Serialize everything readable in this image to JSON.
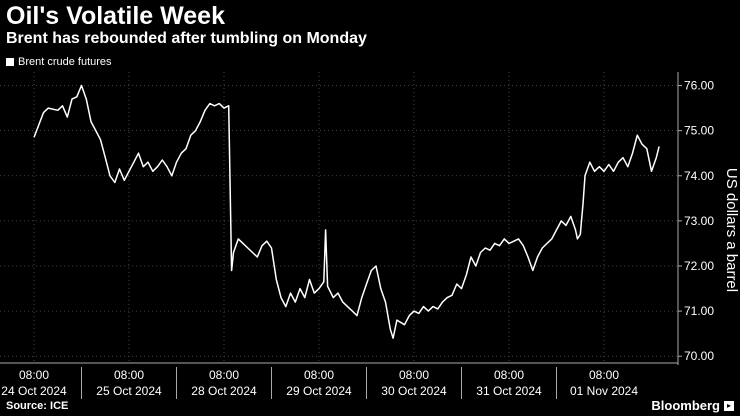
{
  "chart_data": {
    "type": "line",
    "title": "Oil's Volatile Week",
    "subtitle": "Brent has rebounded after tumbling on Monday",
    "ylabel": "US dollars a barrel",
    "series": [
      {
        "name": "Brent crude futures",
        "color": "#ffffff"
      }
    ],
    "ylim": [
      69.85,
      76.3
    ],
    "yticks": [
      70.0,
      71.0,
      72.0,
      73.0,
      74.0,
      75.0,
      76.0
    ],
    "ytick_labels": [
      "70.00",
      "71.00",
      "72.00",
      "73.00",
      "74.00",
      "75.00",
      "76.00"
    ],
    "grid": true,
    "legend": "top-left",
    "days": [
      "24 Oct 2024",
      "25 Oct 2024",
      "28 Oct 2024",
      "29 Oct 2024",
      "30 Oct 2024",
      "31 Oct 2024",
      "01 Nov 2024"
    ],
    "time_label": "08:00",
    "points": [
      [
        0,
        74.85
      ],
      [
        0.1,
        75.4
      ],
      [
        0.15,
        75.5
      ],
      [
        0.25,
        75.45
      ],
      [
        0.3,
        75.55
      ],
      [
        0.35,
        75.3
      ],
      [
        0.4,
        75.7
      ],
      [
        0.45,
        75.75
      ],
      [
        0.5,
        76.0
      ],
      [
        0.55,
        75.7
      ],
      [
        0.6,
        75.2
      ],
      [
        0.65,
        75.0
      ],
      [
        0.7,
        74.8
      ],
      [
        0.75,
        74.4
      ],
      [
        0.8,
        74.0
      ],
      [
        0.85,
        73.85
      ],
      [
        0.9,
        74.15
      ],
      [
        0.95,
        73.9
      ],
      [
        1.0,
        74.1
      ],
      [
        1.05,
        74.3
      ],
      [
        1.1,
        74.5
      ],
      [
        1.15,
        74.2
      ],
      [
        1.2,
        74.3
      ],
      [
        1.25,
        74.1
      ],
      [
        1.3,
        74.2
      ],
      [
        1.35,
        74.35
      ],
      [
        1.4,
        74.2
      ],
      [
        1.45,
        74.0
      ],
      [
        1.5,
        74.3
      ],
      [
        1.55,
        74.5
      ],
      [
        1.6,
        74.6
      ],
      [
        1.65,
        74.9
      ],
      [
        1.7,
        75.0
      ],
      [
        1.75,
        75.2
      ],
      [
        1.8,
        75.45
      ],
      [
        1.85,
        75.6
      ],
      [
        1.9,
        75.55
      ],
      [
        1.95,
        75.6
      ],
      [
        2.0,
        75.5
      ],
      [
        2.05,
        75.55
      ],
      [
        2.08,
        71.9
      ],
      [
        2.1,
        72.3
      ],
      [
        2.15,
        72.6
      ],
      [
        2.2,
        72.5
      ],
      [
        2.25,
        72.4
      ],
      [
        2.3,
        72.3
      ],
      [
        2.35,
        72.2
      ],
      [
        2.4,
        72.45
      ],
      [
        2.45,
        72.55
      ],
      [
        2.5,
        72.4
      ],
      [
        2.55,
        71.7
      ],
      [
        2.6,
        71.3
      ],
      [
        2.65,
        71.1
      ],
      [
        2.7,
        71.4
      ],
      [
        2.75,
        71.2
      ],
      [
        2.8,
        71.5
      ],
      [
        2.85,
        71.3
      ],
      [
        2.9,
        71.7
      ],
      [
        2.95,
        71.4
      ],
      [
        3.0,
        71.5
      ],
      [
        3.05,
        71.65
      ],
      [
        3.07,
        72.8
      ],
      [
        3.09,
        71.55
      ],
      [
        3.15,
        71.3
      ],
      [
        3.2,
        71.4
      ],
      [
        3.25,
        71.2
      ],
      [
        3.3,
        71.1
      ],
      [
        3.35,
        71.0
      ],
      [
        3.4,
        70.9
      ],
      [
        3.45,
        71.3
      ],
      [
        3.5,
        71.6
      ],
      [
        3.55,
        71.9
      ],
      [
        3.6,
        72.0
      ],
      [
        3.65,
        71.5
      ],
      [
        3.7,
        71.2
      ],
      [
        3.75,
        70.6
      ],
      [
        3.78,
        70.4
      ],
      [
        3.82,
        70.8
      ],
      [
        3.9,
        70.7
      ],
      [
        3.95,
        70.9
      ],
      [
        4.0,
        71.0
      ],
      [
        4.05,
        70.95
      ],
      [
        4.1,
        71.1
      ],
      [
        4.15,
        71.0
      ],
      [
        4.2,
        71.1
      ],
      [
        4.25,
        71.05
      ],
      [
        4.3,
        71.2
      ],
      [
        4.35,
        71.3
      ],
      [
        4.4,
        71.35
      ],
      [
        4.45,
        71.6
      ],
      [
        4.5,
        71.5
      ],
      [
        4.55,
        71.8
      ],
      [
        4.6,
        72.2
      ],
      [
        4.65,
        72.0
      ],
      [
        4.7,
        72.3
      ],
      [
        4.75,
        72.4
      ],
      [
        4.8,
        72.35
      ],
      [
        4.85,
        72.5
      ],
      [
        4.9,
        72.45
      ],
      [
        4.95,
        72.6
      ],
      [
        5.0,
        72.5
      ],
      [
        5.05,
        72.55
      ],
      [
        5.1,
        72.6
      ],
      [
        5.15,
        72.45
      ],
      [
        5.2,
        72.2
      ],
      [
        5.25,
        71.9
      ],
      [
        5.3,
        72.2
      ],
      [
        5.35,
        72.4
      ],
      [
        5.4,
        72.5
      ],
      [
        5.45,
        72.6
      ],
      [
        5.5,
        72.8
      ],
      [
        5.55,
        73.0
      ],
      [
        5.6,
        72.9
      ],
      [
        5.65,
        73.1
      ],
      [
        5.7,
        72.8
      ],
      [
        5.72,
        72.6
      ],
      [
        5.75,
        72.7
      ],
      [
        5.78,
        73.4
      ],
      [
        5.8,
        74.0
      ],
      [
        5.85,
        74.3
      ],
      [
        5.9,
        74.1
      ],
      [
        5.95,
        74.2
      ],
      [
        6.0,
        74.1
      ],
      [
        6.05,
        74.25
      ],
      [
        6.1,
        74.1
      ],
      [
        6.15,
        74.3
      ],
      [
        6.2,
        74.4
      ],
      [
        6.25,
        74.2
      ],
      [
        6.3,
        74.5
      ],
      [
        6.35,
        74.9
      ],
      [
        6.4,
        74.7
      ],
      [
        6.45,
        74.6
      ],
      [
        6.5,
        74.1
      ],
      [
        6.55,
        74.4
      ],
      [
        6.58,
        74.65
      ]
    ]
  },
  "footer": {
    "source": "Source: ICE",
    "brand": "Bloomberg",
    "brand_mark": "▸"
  }
}
